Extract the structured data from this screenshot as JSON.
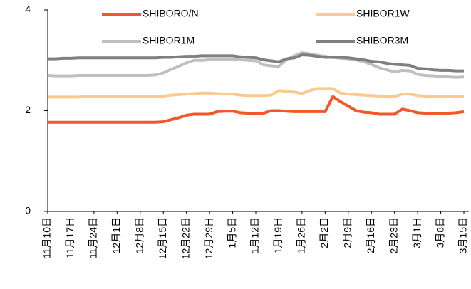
{
  "chart_data": {
    "type": "line",
    "categories": [
      "11月10日",
      null,
      null,
      "11月17日",
      null,
      null,
      "11月24日",
      null,
      null,
      "12月1日",
      null,
      null,
      "12月8日",
      null,
      null,
      "12月15日",
      null,
      null,
      "12月22日",
      null,
      null,
      "12月29日",
      null,
      null,
      "1月5日",
      null,
      null,
      "1月12日",
      null,
      null,
      "1月19日",
      null,
      null,
      "1月26日",
      null,
      null,
      "2月2日",
      null,
      null,
      "2月9日",
      null,
      null,
      "2月16日",
      null,
      null,
      "2月23日",
      null,
      null,
      "3月1日",
      null,
      null,
      "3月8日",
      null,
      null,
      "3月15日"
    ],
    "series": [
      {
        "name": "SHIBORO/N",
        "color": "#f0582a",
        "values": [
          1.77,
          1.77,
          1.77,
          1.77,
          1.77,
          1.77,
          1.77,
          1.77,
          1.77,
          1.77,
          1.77,
          1.77,
          1.77,
          1.77,
          1.77,
          1.78,
          1.82,
          1.86,
          1.91,
          1.93,
          1.93,
          1.93,
          1.98,
          1.99,
          1.99,
          1.96,
          1.95,
          1.95,
          1.95,
          2.0,
          2.0,
          1.99,
          1.98,
          1.98,
          1.98,
          1.98,
          1.98,
          2.28,
          2.18,
          2.09,
          2.0,
          1.97,
          1.96,
          1.93,
          1.93,
          1.93,
          2.03,
          2.0,
          1.96,
          1.95,
          1.95,
          1.95,
          1.95,
          1.96,
          1.98
        ]
      },
      {
        "name": "SHIBOR1W",
        "color": "#fcc98e",
        "values": [
          2.27,
          2.27,
          2.27,
          2.27,
          2.27,
          2.28,
          2.28,
          2.28,
          2.29,
          2.28,
          2.28,
          2.28,
          2.29,
          2.29,
          2.29,
          2.29,
          2.31,
          2.32,
          2.33,
          2.34,
          2.35,
          2.35,
          2.34,
          2.33,
          2.33,
          2.31,
          2.3,
          2.3,
          2.3,
          2.31,
          2.4,
          2.38,
          2.37,
          2.34,
          2.4,
          2.44,
          2.44,
          2.44,
          2.35,
          2.33,
          2.32,
          2.31,
          2.3,
          2.29,
          2.28,
          2.28,
          2.33,
          2.33,
          2.3,
          2.29,
          2.29,
          2.28,
          2.28,
          2.28,
          2.29
        ]
      },
      {
        "name": "SHIBOR1M",
        "color": "#bfbfbf",
        "values": [
          2.7,
          2.69,
          2.69,
          2.69,
          2.7,
          2.7,
          2.7,
          2.7,
          2.7,
          2.7,
          2.7,
          2.7,
          2.7,
          2.7,
          2.71,
          2.75,
          2.82,
          2.88,
          2.95,
          3.0,
          3.0,
          3.01,
          3.01,
          3.01,
          3.01,
          3.01,
          3.0,
          2.99,
          2.91,
          2.89,
          2.88,
          3.02,
          3.09,
          3.15,
          3.13,
          3.1,
          3.08,
          3.06,
          3.04,
          3.03,
          3.01,
          2.97,
          2.92,
          2.85,
          2.81,
          2.77,
          2.8,
          2.79,
          2.72,
          2.7,
          2.69,
          2.68,
          2.67,
          2.66,
          2.67
        ]
      },
      {
        "name": "SHIBOR3M",
        "color": "#7f7f7f",
        "values": [
          3.03,
          3.03,
          3.04,
          3.04,
          3.05,
          3.05,
          3.05,
          3.05,
          3.05,
          3.05,
          3.05,
          3.05,
          3.05,
          3.05,
          3.05,
          3.06,
          3.06,
          3.07,
          3.08,
          3.08,
          3.09,
          3.09,
          3.09,
          3.09,
          3.09,
          3.07,
          3.06,
          3.05,
          3.01,
          2.99,
          2.97,
          3.03,
          3.05,
          3.11,
          3.1,
          3.08,
          3.06,
          3.06,
          3.06,
          3.05,
          3.03,
          3.01,
          2.98,
          2.97,
          2.94,
          2.92,
          2.91,
          2.9,
          2.84,
          2.83,
          2.81,
          2.8,
          2.8,
          2.79,
          2.79
        ]
      }
    ],
    "ylim": [
      0,
      4
    ],
    "yticks": [
      0,
      2,
      4
    ],
    "grid": false
  }
}
